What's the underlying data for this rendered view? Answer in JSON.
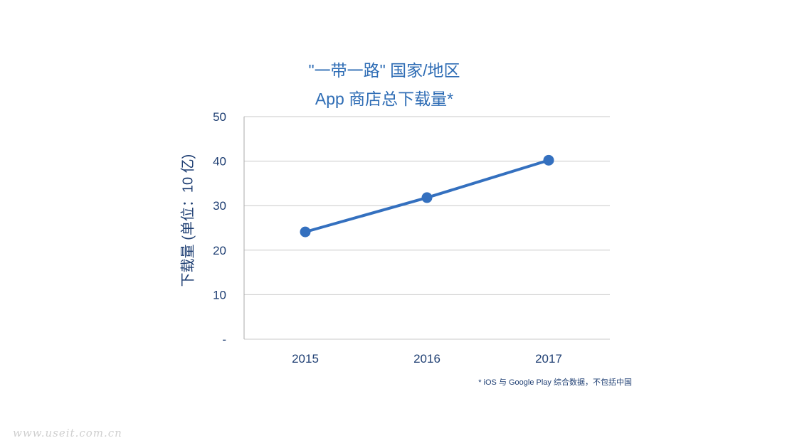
{
  "chart_data": {
    "type": "line",
    "title_line_1": "\"一带一路\" 国家/地区",
    "title_line_2": "App 商店总下载量*",
    "ylabel": "下载量 (单位：10 亿)",
    "categories": [
      "2015",
      "2016",
      "2017"
    ],
    "series": [
      {
        "values": [
          24.1,
          31.8,
          40.2
        ]
      }
    ],
    "ylim": [
      0,
      50
    ],
    "yticks": [
      0,
      10,
      20,
      30,
      40,
      50
    ],
    "ytick_labels": [
      "-",
      "10",
      "20",
      "30",
      "40",
      "50"
    ],
    "grid": true,
    "legend": "none",
    "footnote": "* iOS 与 Google Play 综合数据，不包括中国"
  },
  "colors": {
    "line": "#3470bf",
    "title": "#2f6db5",
    "axis_text": "#1f3f73",
    "grid": "#c8c8c8"
  },
  "watermark": "www.useit.com.cn"
}
